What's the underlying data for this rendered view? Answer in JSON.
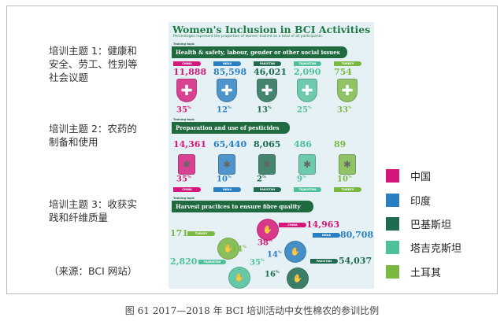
{
  "topics": [
    {
      "lines": [
        "培训主题 1：健康和",
        "安全、劳工、性别等",
        "社会议题"
      ]
    },
    {
      "lines": [
        "培训主题 2：农药的",
        "制备和使用"
      ]
    },
    {
      "lines": [
        "培训主题 3：收获实",
        "践和纤维质量"
      ]
    }
  ],
  "source": "（来源：BCI 网站）",
  "infographic": {
    "title": "Women's Inclusion in BCI Activities",
    "subtitle": "Percentages represent the proportion of women trained as a total of all participants.",
    "training_label": "Training topic",
    "sections": [
      {
        "title": "Health & safety, labour, gender or other social issues",
        "icon": "shield-cross-icon",
        "items": [
          {
            "country": "CHINA",
            "value": "11,888",
            "pct": "35"
          },
          {
            "country": "INDIA",
            "value": "85,598",
            "pct": "12"
          },
          {
            "country": "PAKISTAN",
            "value": "46,021",
            "pct": "13"
          },
          {
            "country": "TAJIKISTAN",
            "value": "2,090",
            "pct": "25"
          },
          {
            "country": "TURKEY",
            "value": "754",
            "pct": "33"
          }
        ]
      },
      {
        "title": "Preparation and use of pesticides",
        "icon": "pesticide-bottle-icon",
        "items": [
          {
            "country": "CHINA",
            "value": "14,361",
            "pct": "35"
          },
          {
            "country": "INDIA",
            "value": "65,440",
            "pct": "10"
          },
          {
            "country": "PAKISTAN",
            "value": "8,065",
            "pct": "2"
          },
          {
            "country": "TAJIKISTAN",
            "value": "486",
            "pct": "9"
          },
          {
            "country": "TURKEY",
            "value": "89",
            "pct": "10"
          }
        ]
      },
      {
        "title": "Harvest practices to ensure fibre quality",
        "icon": "cotton-hand-icon",
        "items": [
          {
            "country": "CHINA",
            "value": "14,963",
            "pct": "38"
          },
          {
            "country": "INDIA",
            "value": "80,708",
            "pct": "14"
          },
          {
            "country": "PAKISTAN",
            "value": "54,037",
            "pct": "16"
          },
          {
            "country": "TAJIKISTAN",
            "value": "2,820",
            "pct": "35"
          },
          {
            "country": "TURKEY",
            "value": "171",
            "pct": "14"
          }
        ]
      }
    ],
    "pct_symbol": "%"
  },
  "legend": [
    {
      "label": "中国",
      "color": "#d6177a"
    },
    {
      "label": "印度",
      "color": "#2a7fc1"
    },
    {
      "label": "巴基斯坦",
      "color": "#1e6b50"
    },
    {
      "label": "塔吉克斯坦",
      "color": "#4fc19a"
    },
    {
      "label": "土耳其",
      "color": "#7ab842"
    }
  ],
  "caption": "图 61 2017—2018 年 BCI 培训活动中女性棉农的参训比例"
}
